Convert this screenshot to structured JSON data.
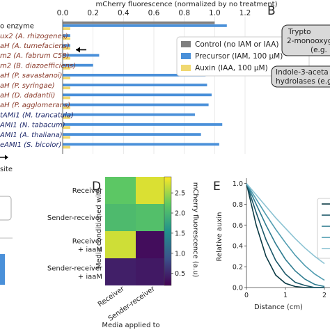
{
  "panel_letters": {
    "B": "B",
    "D": "D",
    "E": "E"
  },
  "panel_b": {
    "box1": [
      "Trypto",
      "2-monooxygen",
      "(e.g."
    ],
    "box2": [
      "Indole-3-aceta",
      "hydrolases (e.g."
    ]
  },
  "colors": {
    "control": "#7f7f7f",
    "precursor": "#4a90d9",
    "auxin": "#f0d870",
    "label_brown": "#8a3a2a",
    "label_navy": "#1f2a6b"
  },
  "chart_data": [
    {
      "type": "bar",
      "orientation": "horizontal",
      "title": "mCherry fluorescence (normalized by no treatment)",
      "xlim": [
        0,
        1.2
      ],
      "xticks": [
        "0.0",
        "0.2",
        "0.4",
        "0.6",
        "0.8",
        "1.0",
        "1.2"
      ],
      "grid": true,
      "legend_position": "right",
      "categories": [
        "o enzyme",
        "ux2 (A. rhizogenes)",
        "aH (A. tumefaciens)",
        "m2 (A. fabrum C58)",
        "m2 (B. diazoefficiens)",
        "aH (P. savastanoi)",
        "aH (P. syringae)",
        "aH (D. dadantii)",
        "aH (P. agglomerans)",
        "tAMI1 (M. trancatula)",
        "AMI1 (N. tabacum)",
        "AMI1 (A. thaliana)",
        "eAMI1 (S. bicolor)"
      ],
      "category_groups": [
        "black",
        "brown",
        "brown",
        "brown",
        "brown",
        "brown",
        "brown",
        "brown",
        "brown",
        "navy",
        "navy",
        "navy",
        "navy"
      ],
      "series": [
        {
          "name": "Control (no IAM or IAA)",
          "values": [
            1.0,
            null,
            null,
            null,
            null,
            null,
            null,
            null,
            null,
            null,
            null,
            null,
            null
          ]
        },
        {
          "name": "Precursor (IAM, 100 μM)",
          "values": [
            1.08,
            0.05,
            0.05,
            0.24,
            0.2,
            0.94,
            0.95,
            0.98,
            0.96,
            0.87,
            1.05,
            0.91,
            1.03
          ]
        },
        {
          "name": "Auxin (IAA, 100 μM)",
          "values": [
            0.05,
            0.05,
            0.05,
            0.05,
            0.05,
            0.05,
            0.05,
            0.05,
            0.05,
            0.05,
            0.05,
            0.05,
            0.05
          ]
        }
      ],
      "arrow_row": "aH (A. tumefaciens)",
      "footer_text": "site"
    },
    {
      "type": "heatmap",
      "panel": "D",
      "ylabel": "Media conditioned with",
      "xlabel": "Media applied to",
      "rows": [
        "Receiver",
        "Sender-receiver",
        "Receiver + iaaM",
        "Sender-receiver + iaaM"
      ],
      "columns": [
        "Receiver",
        "Sender-receiver"
      ],
      "values": [
        [
          2.2,
          2.75
        ],
        [
          2.05,
          2.1
        ],
        [
          2.7,
          0.3
        ],
        [
          0.45,
          0.4
        ]
      ],
      "colorbar": {
        "label": "mCherry fluorescence (a.u)",
        "range": [
          0.2,
          2.9
        ],
        "ticks": [
          "0.5",
          "1.0",
          "1.5",
          "2.0",
          "2.5"
        ]
      }
    },
    {
      "type": "line",
      "panel": "E",
      "xlabel": "Distance (cm)",
      "ylabel": "Relative auxin",
      "xlim": [
        0,
        2.3
      ],
      "ylim": [
        0,
        1.05
      ],
      "xticks": [
        "0",
        "1",
        "2"
      ],
      "yticks": [
        "0.0",
        "0.2",
        "0.4",
        "0.6",
        "0.8",
        "1.0"
      ],
      "series": [
        {
          "x": [
            0,
            0.25,
            0.5,
            0.75,
            1.0,
            1.25,
            1.5,
            1.75,
            2.0
          ],
          "values": [
            1.0,
            0.6,
            0.3,
            0.12,
            0.04,
            0.01,
            0.0,
            0.0,
            0.0
          ],
          "color": "#0b3a44"
        },
        {
          "x": [
            0,
            0.25,
            0.5,
            0.75,
            1.0,
            1.25,
            1.5,
            1.75,
            2.0
          ],
          "values": [
            1.0,
            0.72,
            0.46,
            0.26,
            0.13,
            0.05,
            0.02,
            0.0,
            0.0
          ],
          "color": "#1a5768"
        },
        {
          "x": [
            0,
            0.25,
            0.5,
            0.75,
            1.0,
            1.25,
            1.5,
            1.75,
            2.0
          ],
          "values": [
            1.0,
            0.8,
            0.6,
            0.42,
            0.27,
            0.16,
            0.08,
            0.03,
            0.01
          ],
          "color": "#2f7c90"
        },
        {
          "x": [
            0,
            0.25,
            0.5,
            0.75,
            1.0,
            1.25,
            1.5,
            1.75,
            2.0
          ],
          "values": [
            1.0,
            0.85,
            0.7,
            0.56,
            0.43,
            0.31,
            0.21,
            0.13,
            0.07
          ],
          "color": "#4f9cb0"
        },
        {
          "x": [
            0,
            0.25,
            0.5,
            0.75,
            1.0,
            1.25,
            1.5,
            1.75,
            2.0
          ],
          "values": [
            1.0,
            0.89,
            0.78,
            0.67,
            0.57,
            0.47,
            0.38,
            0.3,
            0.23
          ],
          "color": "#8cc3d3"
        }
      ]
    }
  ]
}
